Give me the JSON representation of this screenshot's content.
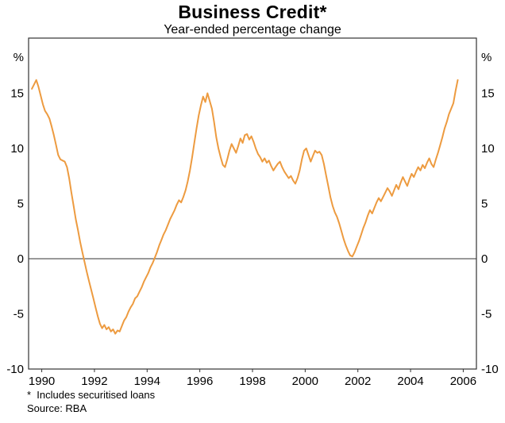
{
  "footnote": "*  Includes securitised loans",
  "source": "Source: RBA",
  "colors": {
    "line": "#ED9B40",
    "frame": "#333333",
    "zero_line": "#333333",
    "text": "#000000",
    "background": "#ffffff"
  },
  "chart_data": {
    "type": "line",
    "title": "Business Credit*",
    "subtitle": "Year-ended percentage change",
    "units": {
      "left": "%",
      "right": "%"
    },
    "x_range": [
      1989.5,
      2006.5
    ],
    "y_range": [
      -10,
      20
    ],
    "y_ticks": [
      -10,
      -5,
      0,
      5,
      10,
      15
    ],
    "x_ticks": [
      1990,
      1992,
      1994,
      1996,
      1998,
      2000,
      2002,
      2004,
      2006
    ],
    "grid": "zero-line-only",
    "legend": "none",
    "series": [
      {
        "name": "Business credit, year-ended percentage change",
        "frequency": "monthly",
        "start": {
          "year": 1989,
          "month": 8
        },
        "values": [
          15.4,
          15.8,
          16.2,
          15.6,
          14.8,
          14.0,
          13.4,
          13.1,
          12.7,
          12.0,
          11.2,
          10.3,
          9.4,
          9.0,
          8.9,
          8.8,
          8.3,
          7.3,
          6.0,
          4.8,
          3.6,
          2.6,
          1.5,
          0.6,
          -0.3,
          -1.2,
          -2.0,
          -2.8,
          -3.6,
          -4.4,
          -5.2,
          -5.9,
          -6.3,
          -6.0,
          -6.4,
          -6.2,
          -6.6,
          -6.4,
          -6.8,
          -6.5,
          -6.6,
          -6.1,
          -5.6,
          -5.3,
          -4.8,
          -4.4,
          -4.1,
          -3.6,
          -3.4,
          -3.0,
          -2.6,
          -2.1,
          -1.7,
          -1.3,
          -0.8,
          -0.4,
          0.1,
          0.6,
          1.2,
          1.7,
          2.2,
          2.6,
          3.1,
          3.6,
          4.0,
          4.4,
          4.9,
          5.3,
          5.1,
          5.6,
          6.2,
          7.0,
          8.0,
          9.2,
          10.5,
          11.8,
          13.0,
          13.9,
          14.7,
          14.2,
          15.0,
          14.3,
          13.6,
          12.4,
          11.0,
          10.0,
          9.2,
          8.5,
          8.3,
          9.0,
          9.8,
          10.4,
          10.0,
          9.6,
          10.2,
          10.9,
          10.5,
          11.2,
          11.3,
          10.8,
          11.1,
          10.6,
          10.0,
          9.5,
          9.2,
          8.8,
          9.1,
          8.7,
          8.9,
          8.4,
          8.0,
          8.3,
          8.6,
          8.8,
          8.3,
          7.9,
          7.6,
          7.3,
          7.5,
          7.1,
          6.8,
          7.3,
          8.0,
          9.0,
          9.8,
          10.0,
          9.4,
          8.8,
          9.3,
          9.8,
          9.6,
          9.7,
          9.4,
          8.6,
          7.6,
          6.6,
          5.6,
          4.8,
          4.2,
          3.8,
          3.2,
          2.5,
          1.8,
          1.2,
          0.7,
          0.3,
          0.2,
          0.6,
          1.1,
          1.6,
          2.2,
          2.8,
          3.3,
          3.9,
          4.4,
          4.1,
          4.6,
          5.1,
          5.5,
          5.2,
          5.6,
          6.0,
          6.4,
          6.1,
          5.7,
          6.2,
          6.7,
          6.3,
          6.9,
          7.4,
          7.0,
          6.6,
          7.2,
          7.7,
          7.4,
          7.9,
          8.3,
          8.0,
          8.5,
          8.2,
          8.7,
          9.1,
          8.6,
          8.3,
          9.0,
          9.6,
          10.3,
          11.0,
          11.8,
          12.4,
          13.1,
          13.6,
          14.1,
          15.2,
          16.2
        ]
      }
    ]
  }
}
